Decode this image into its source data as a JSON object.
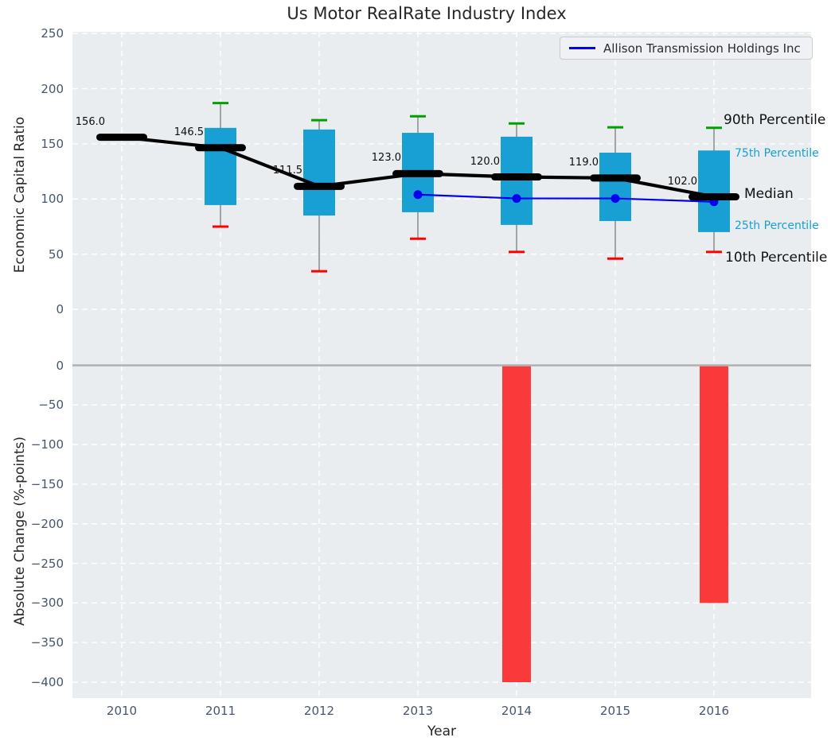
{
  "colors": {
    "plot_background": "#e9edf0",
    "box_fill": "#189fd4",
    "whisker": "#7a7a7a",
    "cap_90th_green": "#00a000",
    "cap_10th_red": "#ff0000",
    "median_black": "#000000",
    "company_line_blue": "#0000ee",
    "bar_negative_red": "#fa3a3a",
    "tick_label": "#46566c",
    "percentile_cyan": "#189fd4",
    "zero_line_gray": "#b0b0b0",
    "gridline_white": "#ffffff"
  },
  "chart_data": [
    {
      "type": "box",
      "title": "Us Motor RealRate Industry Index",
      "ylabel": "Economic Capital Ratio",
      "xlabel": "Year",
      "categories": [
        "2010",
        "2011",
        "2012",
        "2013",
        "2014",
        "2015",
        "2016"
      ],
      "ytick_values": [
        0,
        50,
        100,
        150,
        200,
        250
      ],
      "ytick_labels": [
        "0",
        "50",
        "100",
        "150",
        "200",
        "250"
      ],
      "ylim": [
        -42,
        250
      ],
      "grid": true,
      "legend_position": "upper right",
      "medians": [
        156,
        146.5,
        111.5,
        123,
        120,
        119,
        102
      ],
      "median_labels": [
        "156.0",
        "146.5",
        "111.5",
        "123.0",
        "120.0",
        "119.0",
        "102.0"
      ],
      "p90": [
        null,
        187,
        171.5,
        175,
        168.5,
        165,
        164.5
      ],
      "p75": [
        null,
        164.5,
        163,
        160,
        156.5,
        142,
        144
      ],
      "p25": [
        null,
        94.5,
        85,
        88,
        76.5,
        80,
        70
      ],
      "p10": [
        null,
        75,
        34.5,
        64,
        52,
        46,
        52
      ],
      "series": [
        {
          "name": "Allison Transmission Holdings Inc",
          "x": [
            "2013",
            "2014",
            "2015",
            "2016"
          ],
          "values": [
            104,
            100.5,
            100.5,
            97.5
          ]
        }
      ],
      "percentile_annotations": [
        "90th Percentile",
        "75th Percentile",
        "Median",
        "25th Percentile",
        "10th Percentile"
      ]
    },
    {
      "type": "bar",
      "ylabel": "Absolute Change (%-points)",
      "categories": [
        "2010",
        "2011",
        "2012",
        "2013",
        "2014",
        "2015",
        "2016"
      ],
      "values": [
        null,
        null,
        null,
        null,
        -400,
        null,
        -300
      ],
      "ytick_values": [
        0,
        -50,
        -100,
        -150,
        -200,
        -250,
        -300,
        -350,
        -400
      ],
      "ytick_labels": [
        "0",
        "−50",
        "−100",
        "−150",
        "−200",
        "−250",
        "−300",
        "−350",
        "−400"
      ],
      "ylim": [
        -420,
        12
      ],
      "grid": true
    }
  ]
}
